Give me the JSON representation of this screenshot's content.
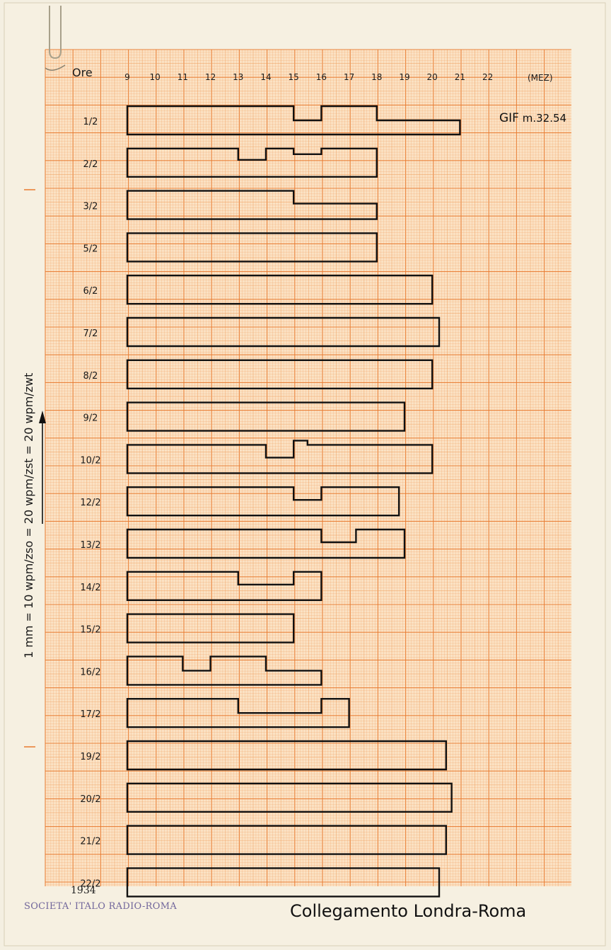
{
  "chart_data": {
    "type": "bar",
    "xlabel": "Ore",
    "x_ticks": [
      9,
      10,
      11,
      12,
      13,
      14,
      15,
      16,
      17,
      18,
      19,
      20,
      21,
      22
    ],
    "x_end_label": "(MEZ)",
    "ylabel": "1 mm = 10 wpm/zso = 20 wpm/zst = 20 wpm/zwt",
    "reference": {
      "prefix": "GIF",
      "suffix": "m.32.54"
    },
    "year": "1934",
    "title": "Collegamento Londra-Roma",
    "rows": [
      {
        "date": "1/2",
        "start": 9,
        "end": 21.0,
        "profile": [
          [
            9,
            1
          ],
          [
            15,
            0.5
          ],
          [
            16,
            1
          ],
          [
            18,
            0.5
          ]
        ]
      },
      {
        "date": "2/2",
        "start": 9,
        "end": 18.0,
        "profile": [
          [
            9,
            1
          ],
          [
            13,
            0.6
          ],
          [
            14,
            1
          ],
          [
            15,
            0.8
          ],
          [
            16,
            1
          ]
        ]
      },
      {
        "date": "3/2",
        "start": 9,
        "end": 18.0,
        "profile": [
          [
            9,
            1
          ],
          [
            15,
            0.55
          ]
        ]
      },
      {
        "date": "5/2",
        "start": 9,
        "end": 18.0,
        "profile": [
          [
            9,
            1
          ]
        ]
      },
      {
        "date": "6/2",
        "start": 9,
        "end": 20.0,
        "profile": [
          [
            9,
            1
          ]
        ]
      },
      {
        "date": "7/2",
        "start": 9,
        "end": 20.25,
        "profile": [
          [
            9,
            1
          ]
        ]
      },
      {
        "date": "8/2",
        "start": 9,
        "end": 20.0,
        "profile": [
          [
            9,
            1
          ]
        ]
      },
      {
        "date": "9/2",
        "start": 9,
        "end": 19.0,
        "profile": [
          [
            9,
            1
          ]
        ]
      },
      {
        "date": "10/2",
        "start": 9,
        "end": 20.0,
        "profile": [
          [
            9,
            1
          ],
          [
            14,
            0.55
          ],
          [
            15,
            1.15
          ],
          [
            15.5,
            1
          ]
        ]
      },
      {
        "date": "12/2",
        "start": 9,
        "end": 18.8,
        "profile": [
          [
            9,
            1
          ],
          [
            15,
            0.55
          ],
          [
            16,
            1
          ]
        ]
      },
      {
        "date": "13/2",
        "start": 9,
        "end": 19.0,
        "profile": [
          [
            9,
            1
          ],
          [
            16,
            0.55
          ],
          [
            17.25,
            1
          ]
        ]
      },
      {
        "date": "14/2",
        "start": 9,
        "end": 16.0,
        "profile": [
          [
            9,
            1
          ],
          [
            13,
            0.55
          ],
          [
            15,
            1
          ]
        ]
      },
      {
        "date": "15/2",
        "start": 9,
        "end": 15.0,
        "profile": [
          [
            9,
            1
          ]
        ]
      },
      {
        "date": "16/2",
        "start": 9,
        "end": 16.0,
        "profile": [
          [
            9,
            1
          ],
          [
            11,
            0.5
          ],
          [
            12,
            1
          ],
          [
            14,
            0.5
          ]
        ]
      },
      {
        "date": "17/2",
        "start": 9,
        "end": 17.0,
        "profile": [
          [
            9,
            1
          ],
          [
            13,
            0.5
          ],
          [
            16,
            1
          ]
        ]
      },
      {
        "date": "19/2",
        "start": 9,
        "end": 20.5,
        "profile": [
          [
            9,
            1
          ]
        ]
      },
      {
        "date": "20/2",
        "start": 9,
        "end": 20.7,
        "profile": [
          [
            9,
            1
          ]
        ]
      },
      {
        "date": "21/2",
        "start": 9,
        "end": 20.5,
        "profile": [
          [
            9,
            1
          ]
        ]
      },
      {
        "date": "22/2",
        "start": 9,
        "end": 20.25,
        "profile": [
          [
            9,
            1
          ]
        ]
      }
    ]
  },
  "stamp": "SOCIETA' ITALO RADIO-ROMA",
  "colors": {
    "grid": "#f0a060",
    "grid_major": "#e87a30",
    "paper": "#fbe2c4",
    "ink": "#111111",
    "stamp": "#5a4e8f"
  }
}
